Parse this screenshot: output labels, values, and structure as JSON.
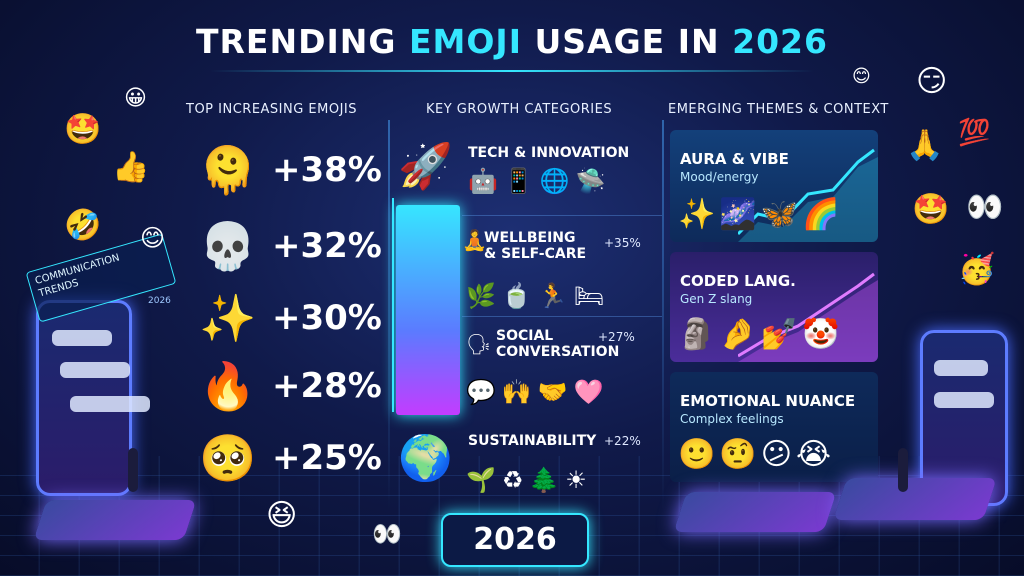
{
  "title": {
    "part1": "TRENDING",
    "part2": "EMOJI",
    "part3": "USAGE IN",
    "part4": "2026"
  },
  "columns": {
    "left": "TOP INCREASING EMOJIS",
    "middle": "KEY GROWTH CATEGORIES",
    "right": "EMERGING THEMES & CONTEXT"
  },
  "top_emojis": [
    {
      "emoji": "🫠",
      "pct": "+38%"
    },
    {
      "emoji": "💀",
      "pct": "+32%"
    },
    {
      "emoji": "✨",
      "pct": "+30%"
    },
    {
      "emoji": "🔥",
      "pct": "+28%"
    },
    {
      "emoji": "🥺",
      "pct": "+25%"
    }
  ],
  "categories": [
    {
      "name": "TECH & INNOVATION",
      "pct": "",
      "lead": "🚀",
      "icons": "🤖📱🌐🛸"
    },
    {
      "name": "WELLBEING",
      "name2": "& SELF-CARE",
      "pct": "+35%",
      "lead": "🧘",
      "icons": "🌿🍵🏃🛏"
    },
    {
      "name": "SOCIAL",
      "name2": "CONVERSATION",
      "pct": "+27%",
      "lead": "🗣",
      "icons": "💬🙌🤝🩷"
    },
    {
      "name": "SUSTAINABILITY",
      "pct": "+22%",
      "lead": "🌍",
      "icons": "🌱♻🌲☀"
    }
  ],
  "themes": [
    {
      "title": "AURA & VIBE",
      "sub": "Mood/energy",
      "icons": "✨🌌🦋🌈"
    },
    {
      "title": "CODED LANG.",
      "sub": "Gen Z slang",
      "icons": "🗿🤌💅🤡"
    },
    {
      "title": "EMOTIONAL NUANCE",
      "sub": "Complex feelings",
      "icons": "🙂🤨😕😭"
    }
  ],
  "side": {
    "tag_line1": "COMMUNICATION",
    "tag_line2": "TRENDS",
    "tag_year": "2026",
    "hundred": "💯"
  },
  "badge": "2026",
  "colors": {
    "accent": "#35e7ff",
    "background": "#0a1233",
    "bar_top": "#36e6ff",
    "bar_bottom": "#c33cff"
  }
}
